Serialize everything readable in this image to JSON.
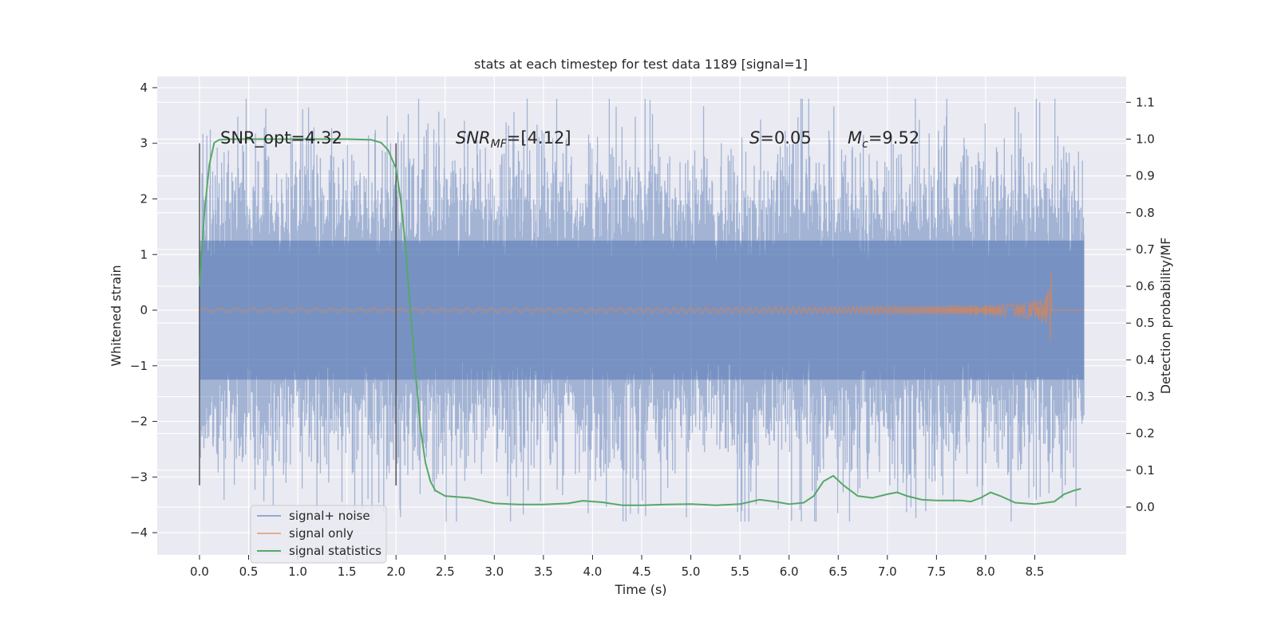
{
  "chart_data": {
    "type": "line",
    "title": "stats at each timestep for test data 1189 [signal=1]",
    "xlabel": "Time (s)",
    "ylabel": "Whitened strain",
    "y2label": "Detection probability/MF",
    "xlim": [
      -0.43,
      9.43
    ],
    "ylim": [
      -4.4,
      4.2
    ],
    "y2lim": [
      -0.13,
      1.17
    ],
    "x_ticks": [
      0.0,
      0.5,
      1.0,
      1.5,
      2.0,
      2.5,
      3.0,
      3.5,
      4.0,
      4.5,
      5.0,
      5.5,
      6.0,
      6.5,
      7.0,
      7.5,
      8.0,
      8.5
    ],
    "y_ticks": [
      -4,
      -3,
      -2,
      -1,
      0,
      1,
      2,
      3,
      4
    ],
    "y2_ticks": [
      0.0,
      0.1,
      0.2,
      0.3,
      0.4,
      0.5,
      0.6,
      0.7,
      0.8,
      0.9,
      1.0,
      1.1
    ],
    "grid": true,
    "legend_position": "lower-left",
    "colors": {
      "background": "#eaeaf2",
      "grid": "#ffffff",
      "signal_noise": "#4c72b0",
      "signal_only": "#dd8452",
      "signal_statistics": "#55a868",
      "vline": "#555555"
    },
    "vlines": [
      0.0,
      2.0
    ],
    "annotations": {
      "snr_opt": "SNR_opt=4.32",
      "snr_mf_prefix": "SNR",
      "snr_mf_sub": "MF",
      "snr_mf_suffix": "=[4.12]",
      "s_var": "S",
      "s_value": "=0.05",
      "mc_var": "M",
      "mc_sub": "c",
      "mc_value": "=9.52"
    },
    "series": [
      {
        "name": "signal+ noise",
        "axis": "left",
        "description_type": "white-noise band",
        "x_range": [
          0.0,
          9.0
        ],
        "core_band": [
          -1.25,
          1.25
        ],
        "spike_extent": [
          -3.8,
          3.8
        ]
      },
      {
        "name": "signal only",
        "axis": "left",
        "description_type": "chirp",
        "x_range": [
          0.0,
          9.0
        ],
        "peak_time": 8.67,
        "peak_max": 0.68,
        "peak_min": -0.55
      },
      {
        "name": "signal statistics",
        "axis": "right",
        "x": [
          0.0,
          0.05,
          0.1,
          0.15,
          0.2,
          0.3,
          0.5,
          1.0,
          1.5,
          1.75,
          1.85,
          1.92,
          2.0,
          2.05,
          2.1,
          2.15,
          2.2,
          2.25,
          2.3,
          2.35,
          2.4,
          2.5,
          2.75,
          3.0,
          3.25,
          3.5,
          3.75,
          3.9,
          4.1,
          4.3,
          4.5,
          4.75,
          5.0,
          5.25,
          5.5,
          5.7,
          5.85,
          6.0,
          6.15,
          6.25,
          6.35,
          6.45,
          6.55,
          6.7,
          6.85,
          7.0,
          7.1,
          7.2,
          7.35,
          7.5,
          7.75,
          7.85,
          7.95,
          8.05,
          8.15,
          8.3,
          8.5,
          8.7,
          8.8,
          8.9,
          8.97
        ],
        "y": [
          0.6,
          0.8,
          0.93,
          0.99,
          0.998,
          1.0,
          1.0,
          1.0,
          1.0,
          0.998,
          0.99,
          0.97,
          0.92,
          0.83,
          0.7,
          0.52,
          0.36,
          0.21,
          0.12,
          0.07,
          0.045,
          0.03,
          0.025,
          0.01,
          0.007,
          0.007,
          0.01,
          0.017,
          0.013,
          0.005,
          0.005,
          0.007,
          0.008,
          0.005,
          0.008,
          0.02,
          0.015,
          0.008,
          0.012,
          0.03,
          0.07,
          0.085,
          0.06,
          0.03,
          0.025,
          0.035,
          0.04,
          0.03,
          0.02,
          0.018,
          0.018,
          0.015,
          0.025,
          0.04,
          0.03,
          0.012,
          0.008,
          0.015,
          0.035,
          0.045,
          0.05
        ]
      }
    ]
  }
}
